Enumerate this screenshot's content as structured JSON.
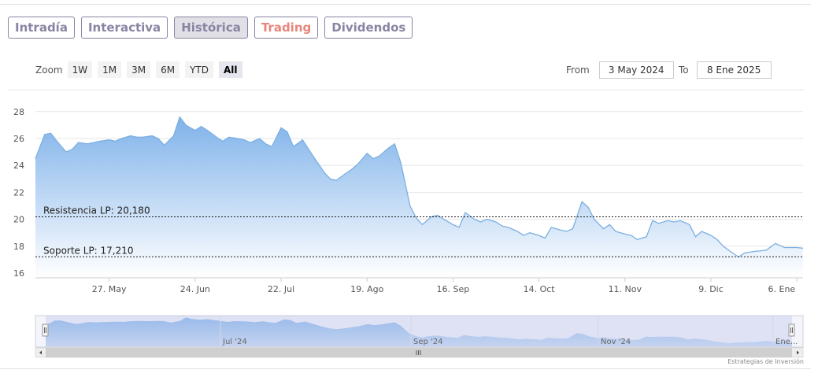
{
  "tabs": [
    {
      "label": "Intradía",
      "active": false
    },
    {
      "label": "Interactiva",
      "active": false
    },
    {
      "label": "Histórica",
      "active": true
    },
    {
      "label": "Trading",
      "active": false
    },
    {
      "label": "Dividendos",
      "active": false
    }
  ],
  "zoom": {
    "label": "Zoom",
    "buttons": [
      "1W",
      "1M",
      "3M",
      "6M",
      "YTD",
      "All"
    ],
    "selected": "All"
  },
  "range": {
    "from_label": "From",
    "from_value": "3 May 2024",
    "to_label": "To",
    "to_value": "8 Ene 2025"
  },
  "credit": "Estrategias de Inversión",
  "colors": {
    "line": "#7cb0e0",
    "fill_top": "#7fb2ea",
    "fill_bottom": "#ffffff",
    "tab_border": "#8a84a3",
    "trading_text": "#e8857c"
  },
  "chart_data": {
    "type": "area",
    "yticks": [
      16,
      18,
      20,
      22,
      24,
      26,
      28
    ],
    "ylim": [
      16,
      28
    ],
    "xlabels": [
      {
        "label": "27. May",
        "date": "2024-05-27"
      },
      {
        "label": "24. Jun",
        "date": "2024-06-24"
      },
      {
        "label": "22. Jul",
        "date": "2024-07-22"
      },
      {
        "label": "19. Ago",
        "date": "2024-08-19"
      },
      {
        "label": "16. Sep",
        "date": "2024-09-16"
      },
      {
        "label": "14. Oct",
        "date": "2024-10-14"
      },
      {
        "label": "11. Nov",
        "date": "2024-11-11"
      },
      {
        "label": "9. Dic",
        "date": "2024-12-09"
      },
      {
        "label": "6. Ene",
        "date": "2025-01-06"
      }
    ],
    "grid": true,
    "reference_lines": [
      {
        "label": "Resistencia LP: 20,180",
        "value": 20.18
      },
      {
        "label": "Soporte LP: 17,210",
        "value": 17.21
      }
    ],
    "series": [
      {
        "x": [
          "2024-05-03",
          "2024-05-06",
          "2024-05-08",
          "2024-05-10",
          "2024-05-13",
          "2024-05-15",
          "2024-05-17",
          "2024-05-20",
          "2024-05-22",
          "2024-05-24",
          "2024-05-27",
          "2024-05-29",
          "2024-05-31",
          "2024-06-03",
          "2024-06-05",
          "2024-06-07",
          "2024-06-10",
          "2024-06-12",
          "2024-06-14",
          "2024-06-17",
          "2024-06-19",
          "2024-06-21",
          "2024-06-24",
          "2024-06-26",
          "2024-06-28",
          "2024-07-01",
          "2024-07-03",
          "2024-07-05",
          "2024-07-08",
          "2024-07-10",
          "2024-07-12",
          "2024-07-15",
          "2024-07-17",
          "2024-07-19",
          "2024-07-22",
          "2024-07-24",
          "2024-07-26",
          "2024-07-29",
          "2024-07-31",
          "2024-08-02",
          "2024-08-05",
          "2024-08-07",
          "2024-08-09",
          "2024-08-12",
          "2024-08-14",
          "2024-08-16",
          "2024-08-19",
          "2024-08-21",
          "2024-08-23",
          "2024-08-26",
          "2024-08-28",
          "2024-08-30",
          "2024-09-02",
          "2024-09-04",
          "2024-09-06",
          "2024-09-09",
          "2024-09-11",
          "2024-09-13",
          "2024-09-16",
          "2024-09-18",
          "2024-09-20",
          "2024-09-23",
          "2024-09-25",
          "2024-09-27",
          "2024-09-30",
          "2024-10-02",
          "2024-10-04",
          "2024-10-07",
          "2024-10-09",
          "2024-10-11",
          "2024-10-14",
          "2024-10-16",
          "2024-10-18",
          "2024-10-21",
          "2024-10-23",
          "2024-10-25",
          "2024-10-28",
          "2024-10-30",
          "2024-11-01",
          "2024-11-04",
          "2024-11-06",
          "2024-11-08",
          "2024-11-11",
          "2024-11-13",
          "2024-11-15",
          "2024-11-18",
          "2024-11-20",
          "2024-11-22",
          "2024-11-25",
          "2024-11-27",
          "2024-11-29",
          "2024-12-02",
          "2024-12-04",
          "2024-12-06",
          "2024-12-09",
          "2024-12-11",
          "2024-12-13",
          "2024-12-16",
          "2024-12-18",
          "2024-12-20",
          "2024-12-23",
          "2024-12-27",
          "2024-12-30",
          "2025-01-02",
          "2025-01-06",
          "2025-01-08"
        ],
        "values": [
          24.5,
          26.3,
          26.4,
          25.8,
          25.0,
          25.2,
          25.7,
          25.6,
          25.7,
          25.8,
          25.9,
          25.8,
          26.0,
          26.2,
          26.1,
          26.1,
          26.2,
          26.0,
          25.5,
          26.2,
          27.6,
          27.0,
          26.6,
          26.9,
          26.6,
          26.1,
          25.8,
          26.1,
          26.0,
          25.9,
          25.7,
          26.0,
          25.6,
          25.4,
          26.8,
          26.5,
          25.4,
          25.9,
          25.2,
          24.5,
          23.5,
          23.0,
          22.9,
          23.4,
          23.7,
          24.1,
          24.9,
          24.5,
          24.7,
          25.3,
          25.6,
          24.2,
          21.0,
          20.1,
          19.6,
          20.2,
          20.3,
          20.0,
          19.6,
          19.4,
          20.5,
          20.0,
          19.8,
          20.0,
          19.8,
          19.5,
          19.4,
          19.1,
          18.8,
          19.0,
          18.8,
          18.6,
          19.4,
          19.2,
          19.1,
          19.3,
          21.3,
          20.9,
          20.0,
          19.3,
          19.6,
          19.1,
          18.9,
          18.8,
          18.5,
          18.7,
          19.9,
          19.7,
          19.9,
          19.8,
          19.9,
          19.6,
          18.7,
          19.1,
          18.8,
          18.5,
          18.0,
          17.5,
          17.2,
          17.5,
          17.6,
          17.7,
          18.2,
          17.9,
          17.9,
          17.85
        ]
      }
    ],
    "navigator": {
      "labels": [
        "Jul '24",
        "Sep '24",
        "Nov '24",
        "Ene..."
      ]
    }
  }
}
